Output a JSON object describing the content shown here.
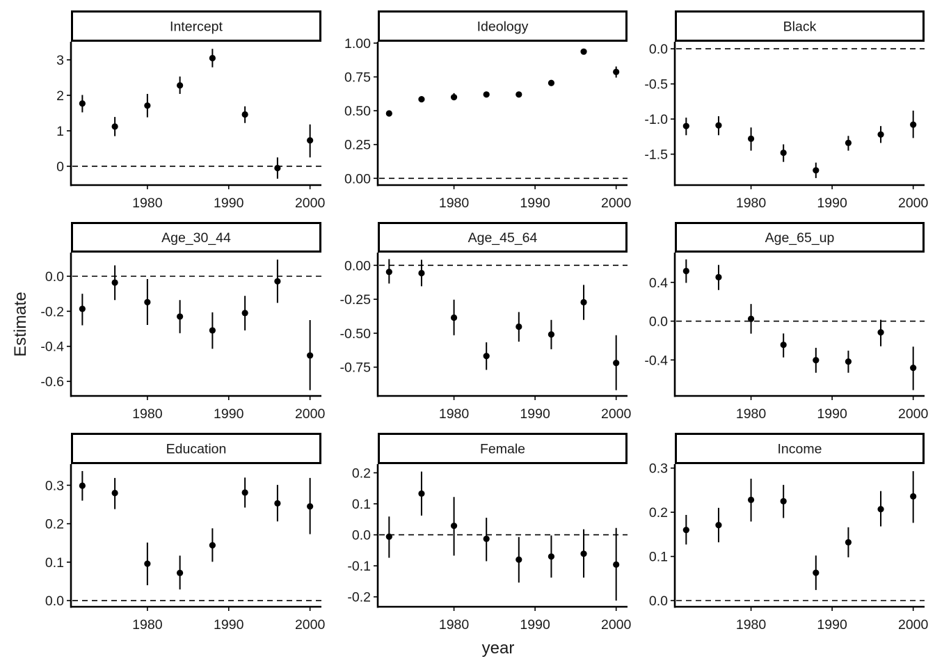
{
  "chart_data": {
    "type": "scatter",
    "subtype": "faceted point-range (estimate with error bars)",
    "xlabel": "year",
    "ylabel": "Estimate",
    "reference_line": 0,
    "grid": false,
    "xlim": [
      1970.6,
      2001.4
    ],
    "x_ticks": [
      1980,
      1990,
      2000
    ],
    "x": [
      1972,
      1976,
      1980,
      1984,
      1988,
      1992,
      1996,
      2000
    ],
    "colors": {
      "points": "#000000",
      "strip_fill": "#ffffff",
      "strip_border": "#000000"
    },
    "panels": [
      {
        "name": "Intercept",
        "ylim": [
          -0.53,
          3.51
        ],
        "y_ticks": [
          0,
          1,
          2,
          3
        ],
        "y_tick_labels": [
          "0",
          "1",
          "2",
          "3"
        ],
        "estimates": [
          1.77,
          1.12,
          1.71,
          2.28,
          3.05,
          1.46,
          -0.05,
          0.73
        ],
        "lower": [
          1.52,
          0.85,
          1.38,
          2.04,
          2.79,
          1.22,
          -0.35,
          0.25
        ],
        "upper": [
          2.01,
          1.39,
          2.04,
          2.53,
          3.31,
          1.69,
          0.25,
          1.18
        ]
      },
      {
        "name": "Ideology",
        "ylim": [
          -0.05,
          1.01
        ],
        "y_ticks": [
          0,
          0.25,
          0.5,
          0.75,
          1
        ],
        "y_tick_labels": [
          "0.00",
          "0.25",
          "0.50",
          "0.75",
          "1.00"
        ],
        "estimates": [
          0.48,
          0.585,
          0.6,
          0.62,
          0.62,
          0.705,
          0.937,
          0.787
        ],
        "lower": [
          0.47,
          0.575,
          0.58,
          0.61,
          0.61,
          0.695,
          0.927,
          0.745
        ],
        "upper": [
          0.49,
          0.595,
          0.63,
          0.63,
          0.63,
          0.715,
          0.947,
          0.827
        ]
      },
      {
        "name": "Black",
        "ylim": [
          -1.94,
          0.1
        ],
        "y_ticks": [
          0,
          -0.5,
          -1,
          -1.5
        ],
        "y_tick_labels": [
          "0.0",
          "-0.5",
          "-1.0",
          "-1.5"
        ],
        "estimates": [
          -1.1,
          -1.09,
          -1.28,
          -1.48,
          -1.73,
          -1.34,
          -1.22,
          -1.08
        ],
        "lower": [
          -1.23,
          -1.23,
          -1.45,
          -1.61,
          -1.84,
          -1.45,
          -1.34,
          -1.27
        ],
        "upper": [
          -0.98,
          -0.96,
          -1.12,
          -1.36,
          -1.62,
          -1.24,
          -1.1,
          -0.88
        ]
      },
      {
        "name": "Age_30_44",
        "ylim": [
          -0.683,
          0.135
        ],
        "y_ticks": [
          0,
          -0.2,
          -0.4,
          -0.6
        ],
        "y_tick_labels": [
          "0.0",
          "-0.2",
          "-0.4",
          "-0.6"
        ],
        "estimates": [
          -0.186,
          -0.036,
          -0.148,
          -0.23,
          -0.309,
          -0.21,
          -0.029,
          -0.452
        ],
        "lower": [
          -0.28,
          -0.136,
          -0.278,
          -0.325,
          -0.414,
          -0.309,
          -0.152,
          -0.65
        ],
        "upper": [
          -0.1,
          0.062,
          -0.016,
          -0.136,
          -0.206,
          -0.112,
          0.095,
          -0.25
        ]
      },
      {
        "name": "Age_45_64",
        "ylim": [
          -0.962,
          0.094
        ],
        "y_ticks": [
          0,
          -0.25,
          -0.5,
          -0.75
        ],
        "y_tick_labels": [
          "0.00",
          "-0.25",
          "-0.50",
          "-0.75"
        ],
        "estimates": [
          -0.048,
          -0.057,
          -0.385,
          -0.668,
          -0.452,
          -0.509,
          -0.272,
          -0.719
        ],
        "lower": [
          -0.134,
          -0.154,
          -0.515,
          -0.77,
          -0.562,
          -0.618,
          -0.402,
          -0.92
        ],
        "upper": [
          0.046,
          0.041,
          -0.253,
          -0.567,
          -0.344,
          -0.402,
          -0.144,
          -0.515
        ]
      },
      {
        "name": "Age_65_up",
        "ylim": [
          -0.771,
          0.707
        ],
        "y_ticks": [
          0.4,
          0,
          -0.4
        ],
        "y_tick_labels": [
          "0.4",
          "0.0",
          "-0.4"
        ],
        "estimates": [
          0.517,
          0.453,
          0.024,
          -0.244,
          -0.402,
          -0.417,
          -0.115,
          -0.481
        ],
        "lower": [
          0.395,
          0.321,
          -0.129,
          -0.374,
          -0.532,
          -0.532,
          -0.259,
          -0.711
        ],
        "upper": [
          0.637,
          0.58,
          0.177,
          -0.127,
          -0.275,
          -0.304,
          0.014,
          -0.263
        ]
      },
      {
        "name": "Education",
        "ylim": [
          -0.016,
          0.355
        ],
        "y_ticks": [
          0,
          0.1,
          0.2,
          0.3
        ],
        "y_tick_labels": [
          "0.0",
          "0.1",
          "0.2",
          "0.3"
        ],
        "estimates": [
          0.299,
          0.28,
          0.096,
          0.072,
          0.144,
          0.281,
          0.253,
          0.245
        ],
        "lower": [
          0.26,
          0.238,
          0.04,
          0.029,
          0.101,
          0.242,
          0.206,
          0.173
        ],
        "upper": [
          0.337,
          0.319,
          0.151,
          0.117,
          0.188,
          0.32,
          0.301,
          0.319
        ]
      },
      {
        "name": "Female",
        "ylim": [
          -0.232,
          0.228
        ],
        "y_ticks": [
          0.2,
          0.1,
          0,
          -0.1,
          -0.2
        ],
        "y_tick_labels": [
          "0.2",
          "0.1",
          "0.0",
          "-0.1",
          "-0.2"
        ],
        "estimates": [
          -0.006,
          0.133,
          0.029,
          -0.013,
          -0.08,
          -0.07,
          -0.061,
          -0.096
        ],
        "lower": [
          -0.074,
          0.062,
          -0.067,
          -0.085,
          -0.154,
          -0.138,
          -0.138,
          -0.212
        ],
        "upper": [
          0.059,
          0.204,
          0.122,
          0.055,
          -0.007,
          -0.002,
          0.018,
          0.022
        ]
      },
      {
        "name": "Income",
        "ylim": [
          -0.014,
          0.309
        ],
        "y_ticks": [
          0,
          0.1,
          0.2,
          0.3
        ],
        "y_tick_labels": [
          "0.0",
          "0.1",
          "0.2",
          "0.3"
        ],
        "estimates": [
          0.16,
          0.171,
          0.228,
          0.225,
          0.063,
          0.132,
          0.207,
          0.236
        ],
        "lower": [
          0.127,
          0.132,
          0.179,
          0.187,
          0.024,
          0.098,
          0.168,
          0.176
        ],
        "upper": [
          0.194,
          0.21,
          0.276,
          0.262,
          0.102,
          0.166,
          0.248,
          0.293
        ]
      }
    ]
  }
}
